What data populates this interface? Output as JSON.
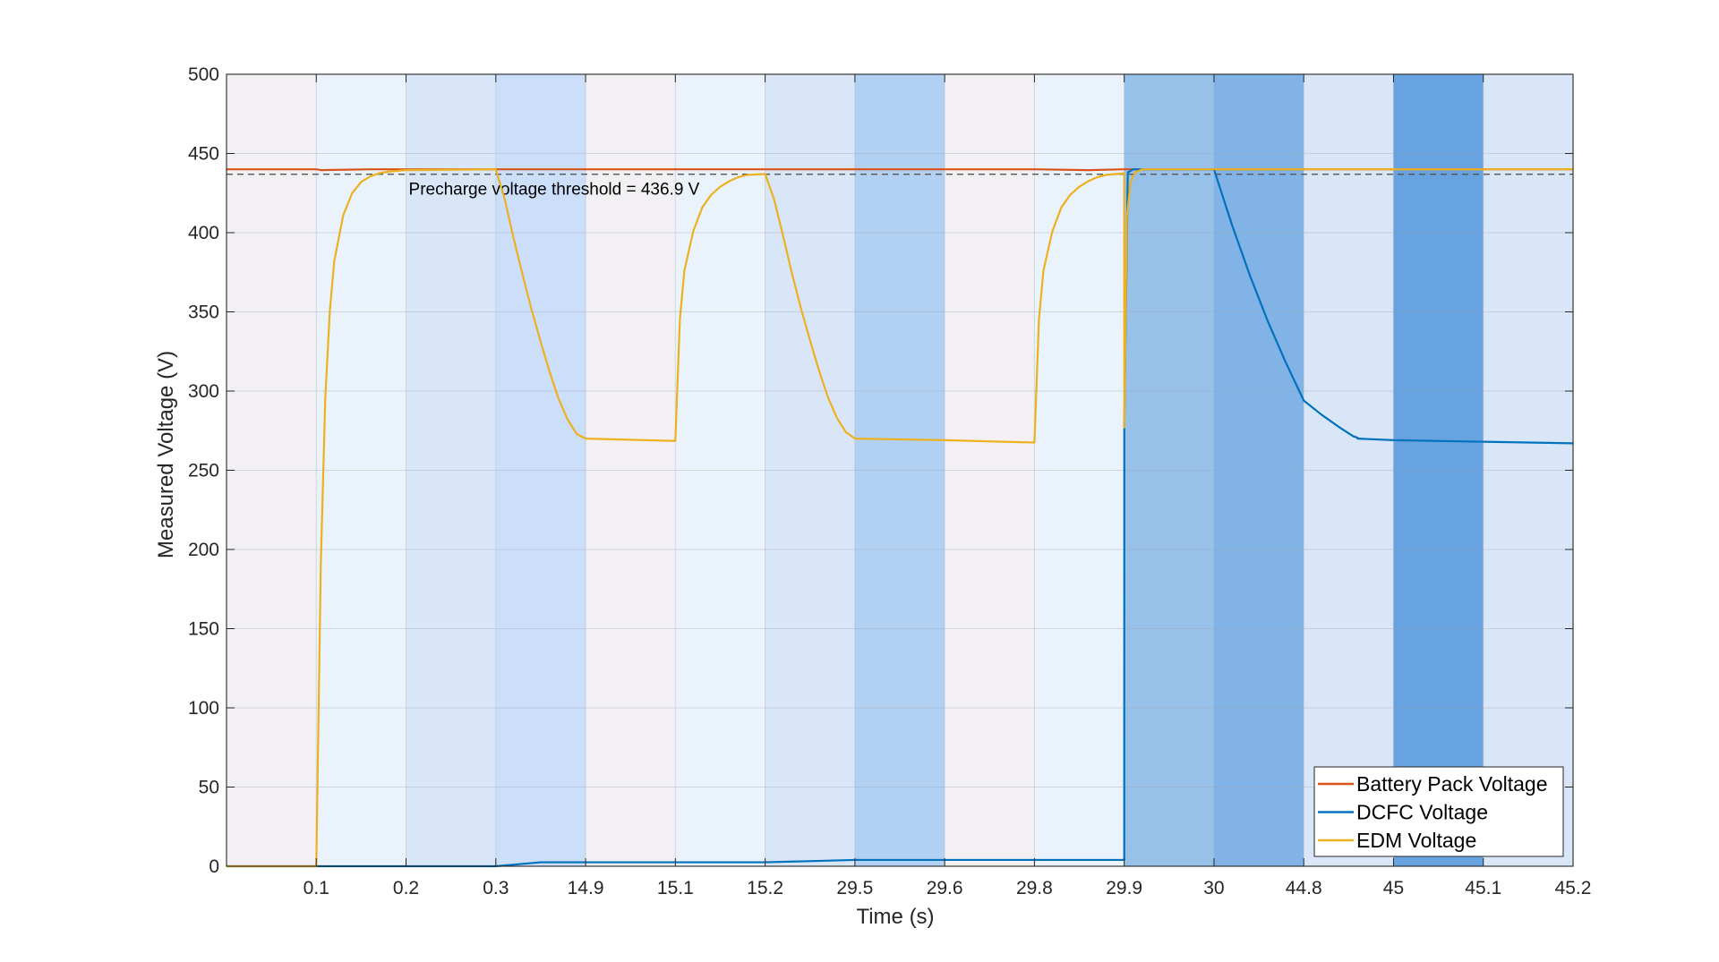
{
  "chart_data": {
    "type": "line",
    "xlabel": "Time (s)",
    "ylabel": "Measured Voltage (V)",
    "ylim": [
      0,
      500
    ],
    "yticks": [
      0,
      50,
      100,
      150,
      200,
      250,
      300,
      350,
      400,
      450,
      500
    ],
    "x_tick_labels": [
      "",
      "0.1",
      "0.2",
      "0.3",
      "14.9",
      "15.1",
      "15.2",
      "29.5",
      "29.6",
      "29.8",
      "29.9",
      "30",
      "44.8",
      "45",
      "45.1",
      "45.2"
    ],
    "x_scale": "piecewise (ticks equally spaced)",
    "grid": true,
    "background_bands": [
      {
        "from": 0,
        "to": 1,
        "color": "#f2f0f3"
      },
      {
        "from": 1,
        "to": 2,
        "color": "#eaf3fc"
      },
      {
        "from": 2,
        "to": 3,
        "color": "#d9e6f8"
      },
      {
        "from": 3,
        "to": 4,
        "color": "#cbdffb"
      },
      {
        "from": 4,
        "to": 5,
        "color": "#f2f0f3"
      },
      {
        "from": 5,
        "to": 6,
        "color": "#eaf3fc"
      },
      {
        "from": 6,
        "to": 7,
        "color": "#d9e6f8"
      },
      {
        "from": 7,
        "to": 8,
        "color": "#b2d0f2"
      },
      {
        "from": 8,
        "to": 9,
        "color": "#f2f0f3"
      },
      {
        "from": 9,
        "to": 10,
        "color": "#eaf3fc"
      },
      {
        "from": 10,
        "to": 11,
        "color": "#98c1ea"
      },
      {
        "from": 11,
        "to": 12,
        "color": "#82b3e6"
      },
      {
        "from": 12,
        "to": 13,
        "color": "#d9e6f8"
      },
      {
        "from": 13,
        "to": 14,
        "color": "#66a3e0"
      },
      {
        "from": 14,
        "to": 15,
        "color": "#d9e6f8"
      }
    ],
    "threshold": {
      "value": 436.9,
      "label": "Precharge voltage threshold = 436.9 V"
    },
    "legend": {
      "placement": "bottom-right"
    },
    "series": [
      {
        "name": "Battery Pack Voltage",
        "color": "#d95319",
        "points": [
          [
            0,
            440
          ],
          [
            1,
            440
          ],
          [
            1.05,
            439.5
          ],
          [
            1.6,
            440
          ],
          [
            2,
            440
          ],
          [
            3,
            440
          ],
          [
            4,
            440
          ],
          [
            5,
            440
          ],
          [
            6,
            440
          ],
          [
            7,
            440
          ],
          [
            8,
            440
          ],
          [
            9,
            440
          ],
          [
            9.6,
            439.5
          ],
          [
            10,
            440
          ],
          [
            15,
            440
          ]
        ]
      },
      {
        "name": "DCFC Voltage",
        "color": "#0072bd",
        "points": [
          [
            0,
            0
          ],
          [
            3,
            0
          ],
          [
            3.5,
            2.5
          ],
          [
            6,
            2.5
          ],
          [
            7,
            4
          ],
          [
            10,
            4
          ],
          [
            10.001,
            278
          ],
          [
            10.04,
            438
          ],
          [
            10.1,
            440
          ],
          [
            11,
            440
          ],
          [
            11.2,
            405
          ],
          [
            11.4,
            373
          ],
          [
            11.6,
            344
          ],
          [
            11.8,
            318
          ],
          [
            12,
            294
          ],
          [
            12.2,
            285
          ],
          [
            12.4,
            277
          ],
          [
            12.55,
            271.5
          ],
          [
            12.6,
            270.5
          ],
          [
            12.6,
            270
          ],
          [
            13,
            269
          ],
          [
            14,
            268
          ],
          [
            15,
            267
          ]
        ]
      },
      {
        "name": "EDM Voltage",
        "color": "#edb120",
        "points": [
          [
            0,
            0
          ],
          [
            1,
            0
          ],
          [
            1.05,
            190
          ],
          [
            1.1,
            295
          ],
          [
            1.15,
            350
          ],
          [
            1.2,
            382
          ],
          [
            1.3,
            411
          ],
          [
            1.4,
            425
          ],
          [
            1.5,
            432
          ],
          [
            1.6,
            435.5
          ],
          [
            1.7,
            437.5
          ],
          [
            1.8,
            438.5
          ],
          [
            2,
            439.5
          ],
          [
            3,
            440
          ],
          [
            3.1,
            421
          ],
          [
            3.2,
            396
          ],
          [
            3.3,
            373
          ],
          [
            3.4,
            351
          ],
          [
            3.5,
            331
          ],
          [
            3.6,
            312
          ],
          [
            3.7,
            295
          ],
          [
            3.8,
            282
          ],
          [
            3.9,
            273
          ],
          [
            4,
            270
          ],
          [
            5,
            268.5
          ],
          [
            5.05,
            345
          ],
          [
            5.1,
            376
          ],
          [
            5.2,
            401
          ],
          [
            5.3,
            416
          ],
          [
            5.4,
            424
          ],
          [
            5.5,
            429
          ],
          [
            5.6,
            432.5
          ],
          [
            5.7,
            435
          ],
          [
            5.8,
            436.5
          ],
          [
            6,
            437
          ],
          [
            6.1,
            421
          ],
          [
            6.2,
            398
          ],
          [
            6.3,
            374
          ],
          [
            6.4,
            352
          ],
          [
            6.5,
            332
          ],
          [
            6.6,
            313
          ],
          [
            6.7,
            296
          ],
          [
            6.8,
            283
          ],
          [
            6.9,
            274
          ],
          [
            7,
            270
          ],
          [
            8,
            269
          ],
          [
            9,
            267.5
          ],
          [
            9.05,
            345
          ],
          [
            9.1,
            376
          ],
          [
            9.2,
            401
          ],
          [
            9.3,
            416
          ],
          [
            9.4,
            424
          ],
          [
            9.5,
            429
          ],
          [
            9.6,
            432.5
          ],
          [
            9.7,
            435
          ],
          [
            9.8,
            436.5
          ],
          [
            10,
            437.5
          ],
          [
            10.001,
            277
          ],
          [
            10.03,
            410
          ],
          [
            10.07,
            432
          ],
          [
            10.12,
            438
          ],
          [
            10.2,
            440
          ],
          [
            15,
            440
          ]
        ]
      }
    ]
  }
}
